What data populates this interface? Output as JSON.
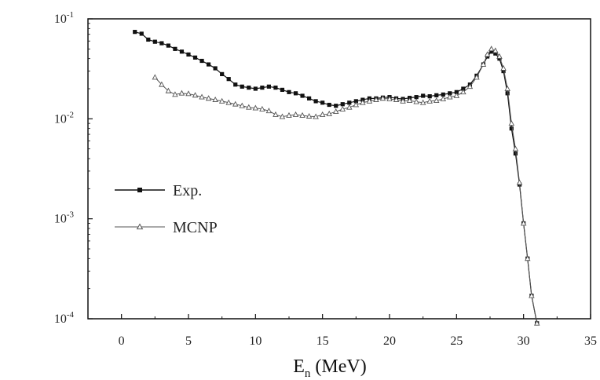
{
  "chart_data": {
    "type": "line",
    "xlabel_main": "E",
    "xlabel_sub": "n",
    "xlabel_rest": " (MeV)",
    "ylabel": "",
    "xlim": [
      -2.5,
      35
    ],
    "ylim": [
      0.0001,
      0.1
    ],
    "y_scale": "log",
    "x_ticks": [
      0,
      5,
      10,
      15,
      20,
      25,
      30,
      35
    ],
    "y_ticks": [
      {
        "value": 0.1,
        "mantissa": "10",
        "exp": "-1"
      },
      {
        "value": 0.01,
        "mantissa": "10",
        "exp": "-2"
      },
      {
        "value": 0.001,
        "mantissa": "10",
        "exp": "-3"
      },
      {
        "value": 0.0001,
        "mantissa": "10",
        "exp": "-4"
      }
    ],
    "grid": false,
    "legend_position": "left-middle",
    "series": [
      {
        "name": "Exp.",
        "color": "#111111",
        "marker": "filled-square",
        "x": [
          1,
          1.5,
          2,
          2.5,
          3,
          3.5,
          4,
          4.5,
          5,
          5.5,
          6,
          6.5,
          7,
          7.5,
          8,
          8.5,
          9,
          9.5,
          10,
          10.5,
          11,
          11.5,
          12,
          12.5,
          13,
          13.5,
          14,
          14.5,
          15,
          15.5,
          16,
          16.5,
          17,
          17.5,
          18,
          18.5,
          19,
          19.5,
          20,
          20.5,
          21,
          21.5,
          22,
          22.5,
          23,
          23.5,
          24,
          24.5,
          25,
          25.5,
          26,
          26.5,
          27,
          27.3,
          27.6,
          27.9,
          28.2,
          28.5,
          28.8,
          29.1,
          29.4,
          29.7,
          30,
          30.3,
          30.6,
          31
        ],
        "y": [
          0.074,
          0.071,
          0.062,
          0.059,
          0.057,
          0.054,
          0.05,
          0.047,
          0.044,
          0.041,
          0.038,
          0.035,
          0.032,
          0.028,
          0.025,
          0.022,
          0.021,
          0.0205,
          0.02,
          0.0205,
          0.021,
          0.0205,
          0.0195,
          0.0185,
          0.018,
          0.017,
          0.016,
          0.015,
          0.0145,
          0.0138,
          0.0135,
          0.014,
          0.0145,
          0.015,
          0.0155,
          0.016,
          0.016,
          0.0163,
          0.0165,
          0.016,
          0.0158,
          0.0162,
          0.0165,
          0.017,
          0.0168,
          0.0172,
          0.0175,
          0.018,
          0.0185,
          0.02,
          0.022,
          0.027,
          0.035,
          0.042,
          0.047,
          0.045,
          0.04,
          0.03,
          0.018,
          0.008,
          0.0045,
          0.0022,
          0.0009,
          0.0004,
          0.00017,
          9e-05
        ]
      },
      {
        "name": "MCNP",
        "color": "#555555",
        "marker": "open-triangle",
        "x": [
          2.5,
          3,
          3.5,
          4,
          4.5,
          5,
          5.5,
          6,
          6.5,
          7,
          7.5,
          8,
          8.5,
          9,
          9.5,
          10,
          10.5,
          11,
          11.5,
          12,
          12.5,
          13,
          13.5,
          14,
          14.5,
          15,
          15.5,
          16,
          16.5,
          17,
          17.5,
          18,
          18.5,
          19,
          19.5,
          20,
          20.5,
          21,
          21.5,
          22,
          22.5,
          23,
          23.5,
          24,
          24.5,
          25,
          25.5,
          26,
          26.5,
          27,
          27.3,
          27.6,
          27.9,
          28.2,
          28.5,
          28.8,
          29.1,
          29.4,
          29.7,
          30,
          30.3,
          30.6,
          31
        ],
        "y": [
          0.026,
          0.022,
          0.019,
          0.0175,
          0.018,
          0.0178,
          0.0172,
          0.0165,
          0.016,
          0.0155,
          0.015,
          0.0145,
          0.014,
          0.0135,
          0.013,
          0.0128,
          0.0125,
          0.012,
          0.011,
          0.0105,
          0.0108,
          0.011,
          0.0108,
          0.0106,
          0.0105,
          0.011,
          0.0112,
          0.0118,
          0.0125,
          0.013,
          0.0138,
          0.0145,
          0.015,
          0.0155,
          0.016,
          0.0158,
          0.0155,
          0.015,
          0.0152,
          0.0148,
          0.0145,
          0.015,
          0.0152,
          0.0158,
          0.0165,
          0.017,
          0.0185,
          0.021,
          0.026,
          0.035,
          0.044,
          0.05,
          0.048,
          0.042,
          0.032,
          0.02,
          0.009,
          0.005,
          0.0023,
          0.0009,
          0.0004,
          0.00017,
          9e-05
        ]
      }
    ]
  }
}
